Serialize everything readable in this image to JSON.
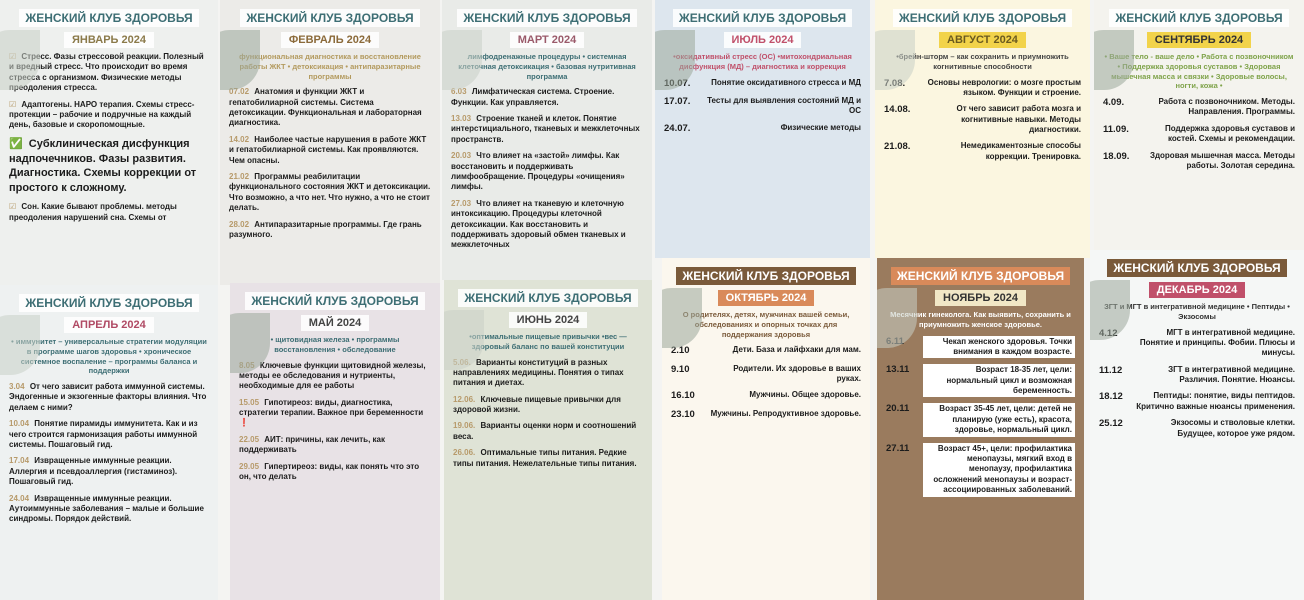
{
  "club_title": "ЖЕНСКИЙ КЛУБ ЗДОРОВЬЯ",
  "colors": {
    "teal": "#3d6e74",
    "gold": "#b39a5e",
    "brown": "#9a7b5e",
    "orange": "#d98a5a",
    "green": "#7fa34a",
    "pink": "#c0506a"
  },
  "cards": [
    {
      "month": "ЯНВАРЬ 2024",
      "subtitle": "",
      "items": [
        {
          "date": "☑",
          "text": "Стресс. Фазы стрессовой реакции. Полезный и вредный стресс. Что происходит во время стресса с организмом. Физические методы преодоления стресса."
        },
        {
          "date": "☑",
          "text": "Адаптогены. НАРО терапия. Схемы стресс-протекции – рабочие и подручные на каждый день, базовые и скоропомощные."
        },
        {
          "date": "✅",
          "text": "Субклиническая дисфункция надпочечников. Фазы развития. Диагностика. Схемы коррекции от простого к сложному."
        },
        {
          "date": "☑",
          "text": "Сон. Какие бывают проблемы. методы преодоления нарушений сна. Схемы от"
        }
      ]
    },
    {
      "month": "ФЕВРАЛЬ 2024",
      "subtitle": "функциональная диагностика и восстановление работы ЖКТ • детоксикация • антипаразитарные программы",
      "items": [
        {
          "date": "07.02",
          "text": "Анатомия и функции ЖКТ и гепатобилиарной системы. Система детоксикации. Функциональная и лабораторная диагностика."
        },
        {
          "date": "14.02",
          "text": "Наиболее частые нарушения в работе ЖКТ и гепатобилиарной системы. Как проявляются. Чем опасны."
        },
        {
          "date": "21.02",
          "text": "Программы реабилитации функционального состояния ЖКТ и детоксикации. Что возможно, а что нет. Что нужно, а что не стоит делать."
        },
        {
          "date": "28.02",
          "text": "Антипаразитарные программы. Где грань разумного."
        }
      ]
    },
    {
      "month": "МАРТ 2024",
      "subtitle": "лимфодренажные процедуры • системная клеточная детоксикация • базовая нутритивная программа",
      "items": [
        {
          "date": "6.03",
          "text": "Лимфатическая система. Строение. Функции. Как управляется."
        },
        {
          "date": "13.03",
          "text": "Строение тканей и клеток. Понятие интерстициального, тканевых и межклеточных пространств."
        },
        {
          "date": "20.03",
          "text": "Что влияет на «застой» лимфы. Как восстановить и поддерживать лимфообращение. Процедуры «очищения» лимфы."
        },
        {
          "date": "27.03",
          "text": "Что влияет на тканевую и клеточную интоксикацию. Процедуры клеточной детоксикации. Как восстановить и поддерживать здоровый обмен тканевых и межклеточных"
        }
      ]
    },
    {
      "month": "ИЮЛЬ 2024",
      "subtitle": "•оксидативный стресс (ОС) •митохондриальная дисфункция (МД) – диагностика и коррекция",
      "items": [
        {
          "date": "10.07.",
          "text": "Понятие оксидативного стресса и МД"
        },
        {
          "date": "17.07.",
          "text": "Тесты для выявления состояний МД и ОС"
        },
        {
          "date": "24.07.",
          "text": "Физические методы"
        }
      ]
    },
    {
      "month": "АВГУСТ 2024",
      "subtitle": "•брейн-шторм – как сохранить и приумножить когнитивные способности",
      "items": [
        {
          "date": "7.08.",
          "text": "Основы неврологии: о мозге простым языком. Функции и строение."
        },
        {
          "date": "14.08.",
          "text": "От чего зависит работа мозга и когнитивные навыки. Методы диагностики."
        },
        {
          "date": "21.08.",
          "text": "Немедикаментозные способы коррекции. Тренировка."
        }
      ]
    },
    {
      "month": "СЕНТЯБРЬ 2024",
      "subtitle": "• Ваше тело - ваше дело • Работа с позвоночником • Поддержка здоровья суставов • Здоровая мышечная масса и связки • Здоровые волосы, ногти, кожа •",
      "items": [
        {
          "date": "4.09.",
          "text": "Работа с позвоночником. Методы. Направления. Программы."
        },
        {
          "date": "11.09.",
          "text": "Поддержка здоровья суставов и костей. Схемы и рекомендации."
        },
        {
          "date": "18.09.",
          "text": "Здоровая мышечная масса. Методы работы. Золотая середина."
        }
      ]
    },
    {
      "month": "АПРЕЛЬ 2024",
      "subtitle": "• иммунитет – универсальные стратегии модуляции в программе шагов здоровья • хроническое системное воспаление – программы баланса и поддержки",
      "items": [
        {
          "date": "3.04",
          "text": "От чего зависит работа иммунной системы. Эндогенные и экзогенные факторы влияния. Что делаем с ними?"
        },
        {
          "date": "10.04",
          "text": "Понятие пирамиды иммунитета. Как и из чего строится гармонизация работы иммунной системы. Пошаговый гид."
        },
        {
          "date": "17.04",
          "text": "Извращенные иммунные реакции. Аллергия и псевдоаллергия (гистаминоз). Пошаговый гид."
        },
        {
          "date": "24.04",
          "text": "Извращенные иммунные реакции. Аутоиммунные заболевания – малые и большие синдромы. Порядок действий."
        }
      ]
    },
    {
      "month": "МАЙ 2024",
      "subtitle": "• щитовидная железа • программы восстановления • обследование",
      "items": [
        {
          "date": "8.05",
          "text": "Ключевые функции щитовидной железы, методы ее обследования и нутриенты, необходимые для ее работы"
        },
        {
          "date": "15.05",
          "text": "Гипотиреоз: виды, диагностика, стратегии терапии. Важное при беременности ❗"
        },
        {
          "date": "22.05",
          "text": "АИТ: причины, как лечить, как поддерживать"
        },
        {
          "date": "29.05",
          "text": "Гипертиреоз: виды, как понять что это он, что делать"
        }
      ]
    },
    {
      "month": "ИЮНЬ 2024",
      "subtitle": "•оптимальные пищевые привычки •вес — здоровый баланс по вашей конституции",
      "items": [
        {
          "date": "5.06.",
          "text": "Варианты конституций в разных направлениях медицины. Понятия о типах питания и диетах."
        },
        {
          "date": "12.06.",
          "text": "Ключевые пищевые привычки для здоровой жизни."
        },
        {
          "date": "19.06.",
          "text": "Варианты оценки норм и соотношений веса."
        },
        {
          "date": "26.06.",
          "text": "Оптимальные типы питания. Редкие типы питания. Нежелательные типы питания."
        }
      ]
    },
    {
      "month": "ОКТЯБРЬ 2024",
      "subtitle": "О родителях, детях, мужчинах вашей семьи, обследованиях и опорных точках для поддержания здоровья",
      "items": [
        {
          "date": "2.10",
          "text": "Дети. База и лайфхаки для мам."
        },
        {
          "date": "9.10",
          "text": "Родители. Их здоровье в ваших руках."
        },
        {
          "date": "16.10",
          "text": "Мужчины. Общее здоровье."
        },
        {
          "date": "23.10",
          "text": "Мужчины. Репродуктивное здоровье."
        }
      ]
    },
    {
      "month": "НОЯБРЬ 2024",
      "subtitle": "Месячник гинеколога. Как выявить, сохранить и приумножить женское здоровье.",
      "items": [
        {
          "date": "6.11",
          "text": "Чекап женского здоровья. Точки внимания в каждом возрасте."
        },
        {
          "date": "13.11",
          "text": "Возраст 18-35 лет, цели: нормальный цикл и возможная беременность."
        },
        {
          "date": "20.11",
          "text": "Возраст 35-45 лет, цели: детей не планирую (уже есть), красота, здоровье, нормальный цикл."
        },
        {
          "date": "27.11",
          "text": "Возраст 45+, цели: профилактика менопаузы, мягкий вход в менопаузу, профилактика осложнений менопаузы и возраст-ассоциированных заболеваний."
        }
      ]
    },
    {
      "month": "ДЕКАБРЬ 2024",
      "subtitle": "ЗГТ и МГТ в интегративной медицине • Пептиды • Экзосомы",
      "items": [
        {
          "date": "4.12",
          "text": "МГТ в интегративной медицине. Понятие и принципы. Фобии. Плюсы и минусы."
        },
        {
          "date": "11.12",
          "text": "ЗГТ в интегративной медицине. Различия. Понятие. Нюансы."
        },
        {
          "date": "18.12",
          "text": "Пептиды: понятие, виды пептидов. Критично важные нюансы применения."
        },
        {
          "date": "25.12",
          "text": "Экзосомы и стволовые клетки. Будущее, которое уже рядом."
        }
      ]
    }
  ]
}
